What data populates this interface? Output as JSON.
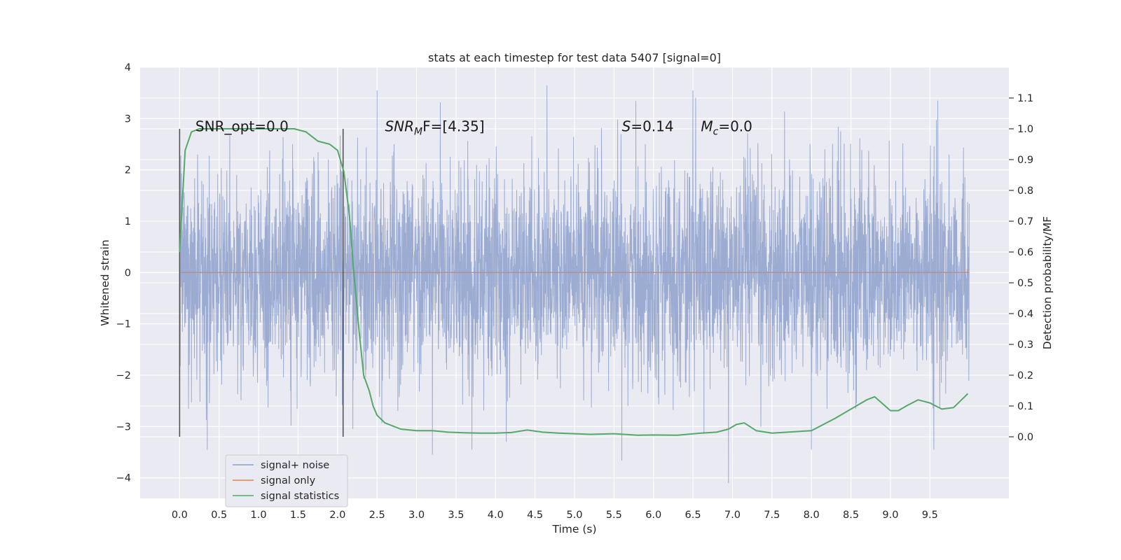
{
  "chart_data": {
    "type": "line",
    "title": "stats at each timestep for test data 5407 [signal=0]",
    "xlabel": "Time (s)",
    "ylabel": "Whitened strain",
    "ylabel_right": "Detection probability/MF",
    "xlim": [
      -0.5,
      10.5
    ],
    "ylim": [
      -4.4,
      4.0
    ],
    "ylim_right": [
      -0.2,
      1.2
    ],
    "x_ticks": [
      0.0,
      0.5,
      1.0,
      1.5,
      2.0,
      2.5,
      3.0,
      3.5,
      4.0,
      4.5,
      5.0,
      5.5,
      6.0,
      6.5,
      7.0,
      7.5,
      8.0,
      8.5,
      9.0,
      9.5
    ],
    "x_tick_labels": [
      "0.0",
      "0.5",
      "1.0",
      "1.5",
      "2.0",
      "2.5",
      "3.0",
      "3.5",
      "4.0",
      "4.5",
      "5.0",
      "5.5",
      "6.0",
      "6.5",
      "7.0",
      "7.5",
      "8.0",
      "8.5",
      "9.0",
      "9.5"
    ],
    "y_ticks": [
      -4,
      -3,
      -2,
      -1,
      0,
      1,
      2,
      3,
      4
    ],
    "y_tick_labels": [
      "−4",
      "−3",
      "−2",
      "−1",
      "0",
      "1",
      "2",
      "3",
      "4"
    ],
    "y_right_ticks": [
      0.0,
      0.1,
      0.2,
      0.3,
      0.4,
      0.5,
      0.6,
      0.7,
      0.8,
      0.9,
      1.0,
      1.1
    ],
    "y_right_tick_labels": [
      "0.0",
      "0.1",
      "0.2",
      "0.3",
      "0.4",
      "0.5",
      "0.6",
      "0.7",
      "0.8",
      "0.9",
      "1.0",
      "1.1"
    ],
    "grid": true,
    "legend_position": "lower-left",
    "series": [
      {
        "name": "signal+ noise",
        "color": "#8da0cb",
        "axis": "left",
        "kind": "dense-noise",
        "x_range": [
          0.0,
          10.0
        ],
        "approx_range": [
          -4.1,
          3.65
        ],
        "peaks": [
          [
            2.5,
            3.55
          ],
          [
            4.65,
            3.65
          ],
          [
            6.5,
            3.55
          ],
          [
            9.6,
            3.35
          ],
          [
            3.2,
            -3.55
          ],
          [
            3.7,
            -3.45
          ],
          [
            6.95,
            -4.1
          ],
          [
            8.0,
            -3.45
          ],
          [
            9.55,
            -3.45
          ],
          [
            0.35,
            -3.45
          ]
        ]
      },
      {
        "name": "signal only",
        "color": "#dd8452",
        "axis": "left",
        "x": [
          0.0,
          10.0
        ],
        "y": [
          0.0,
          0.0
        ]
      },
      {
        "name": "signal statistics",
        "color": "#55a868",
        "axis": "right",
        "x": [
          0.0,
          0.07,
          0.15,
          0.25,
          0.5,
          1.0,
          1.2,
          1.45,
          1.6,
          1.75,
          1.9,
          2.0,
          2.08,
          2.15,
          2.2,
          2.27,
          2.33,
          2.4,
          2.45,
          2.5,
          2.6,
          2.8,
          3.0,
          3.2,
          3.4,
          3.6,
          3.8,
          4.0,
          4.2,
          4.4,
          4.6,
          4.8,
          5.0,
          5.2,
          5.5,
          5.8,
          6.0,
          6.3,
          6.6,
          6.8,
          6.95,
          7.05,
          7.15,
          7.3,
          7.5,
          8.0,
          8.3,
          8.5,
          8.7,
          8.8,
          9.0,
          9.1,
          9.2,
          9.35,
          9.5,
          9.65,
          9.8,
          9.9,
          9.98
        ],
        "y": [
          0.6,
          0.93,
          0.99,
          1.0,
          1.0,
          1.0,
          1.0,
          1.0,
          0.99,
          0.96,
          0.95,
          0.93,
          0.86,
          0.72,
          0.55,
          0.35,
          0.2,
          0.15,
          0.1,
          0.07,
          0.045,
          0.025,
          0.02,
          0.02,
          0.015,
          0.013,
          0.012,
          0.012,
          0.014,
          0.022,
          0.015,
          0.012,
          0.01,
          0.008,
          0.01,
          0.005,
          0.006,
          0.005,
          0.012,
          0.015,
          0.025,
          0.04,
          0.045,
          0.02,
          0.012,
          0.02,
          0.06,
          0.09,
          0.12,
          0.13,
          0.085,
          0.085,
          0.1,
          0.12,
          0.11,
          0.09,
          0.095,
          0.12,
          0.14
        ]
      }
    ],
    "vertical_markers": [
      {
        "x": 0.0,
        "y_range": [
          -3.2,
          2.8
        ],
        "color": "#555555"
      },
      {
        "x": 2.07,
        "y_range": [
          -3.2,
          2.8
        ],
        "color": "#555555"
      }
    ],
    "annotations": [
      {
        "text": "SNR_opt=0.0",
        "x": 0.2,
        "y": 2.85,
        "math": false
      },
      {
        "text": "SNR",
        "sub": "M",
        "rest": "F=[4.35]",
        "x": 2.6,
        "y": 2.85,
        "math": true
      },
      {
        "text": "S",
        "sub": "",
        "rest": "=0.14",
        "x": 5.6,
        "y": 2.85,
        "math": true
      },
      {
        "text": "M",
        "sub": "c",
        "rest": "=0.0",
        "x": 6.6,
        "y": 2.85,
        "math": true
      }
    ],
    "colors": {
      "background": "#eaeaf2",
      "grid": "#ffffff",
      "legend_background": "#eaeaf2",
      "legend_border": "#cccccc"
    }
  }
}
